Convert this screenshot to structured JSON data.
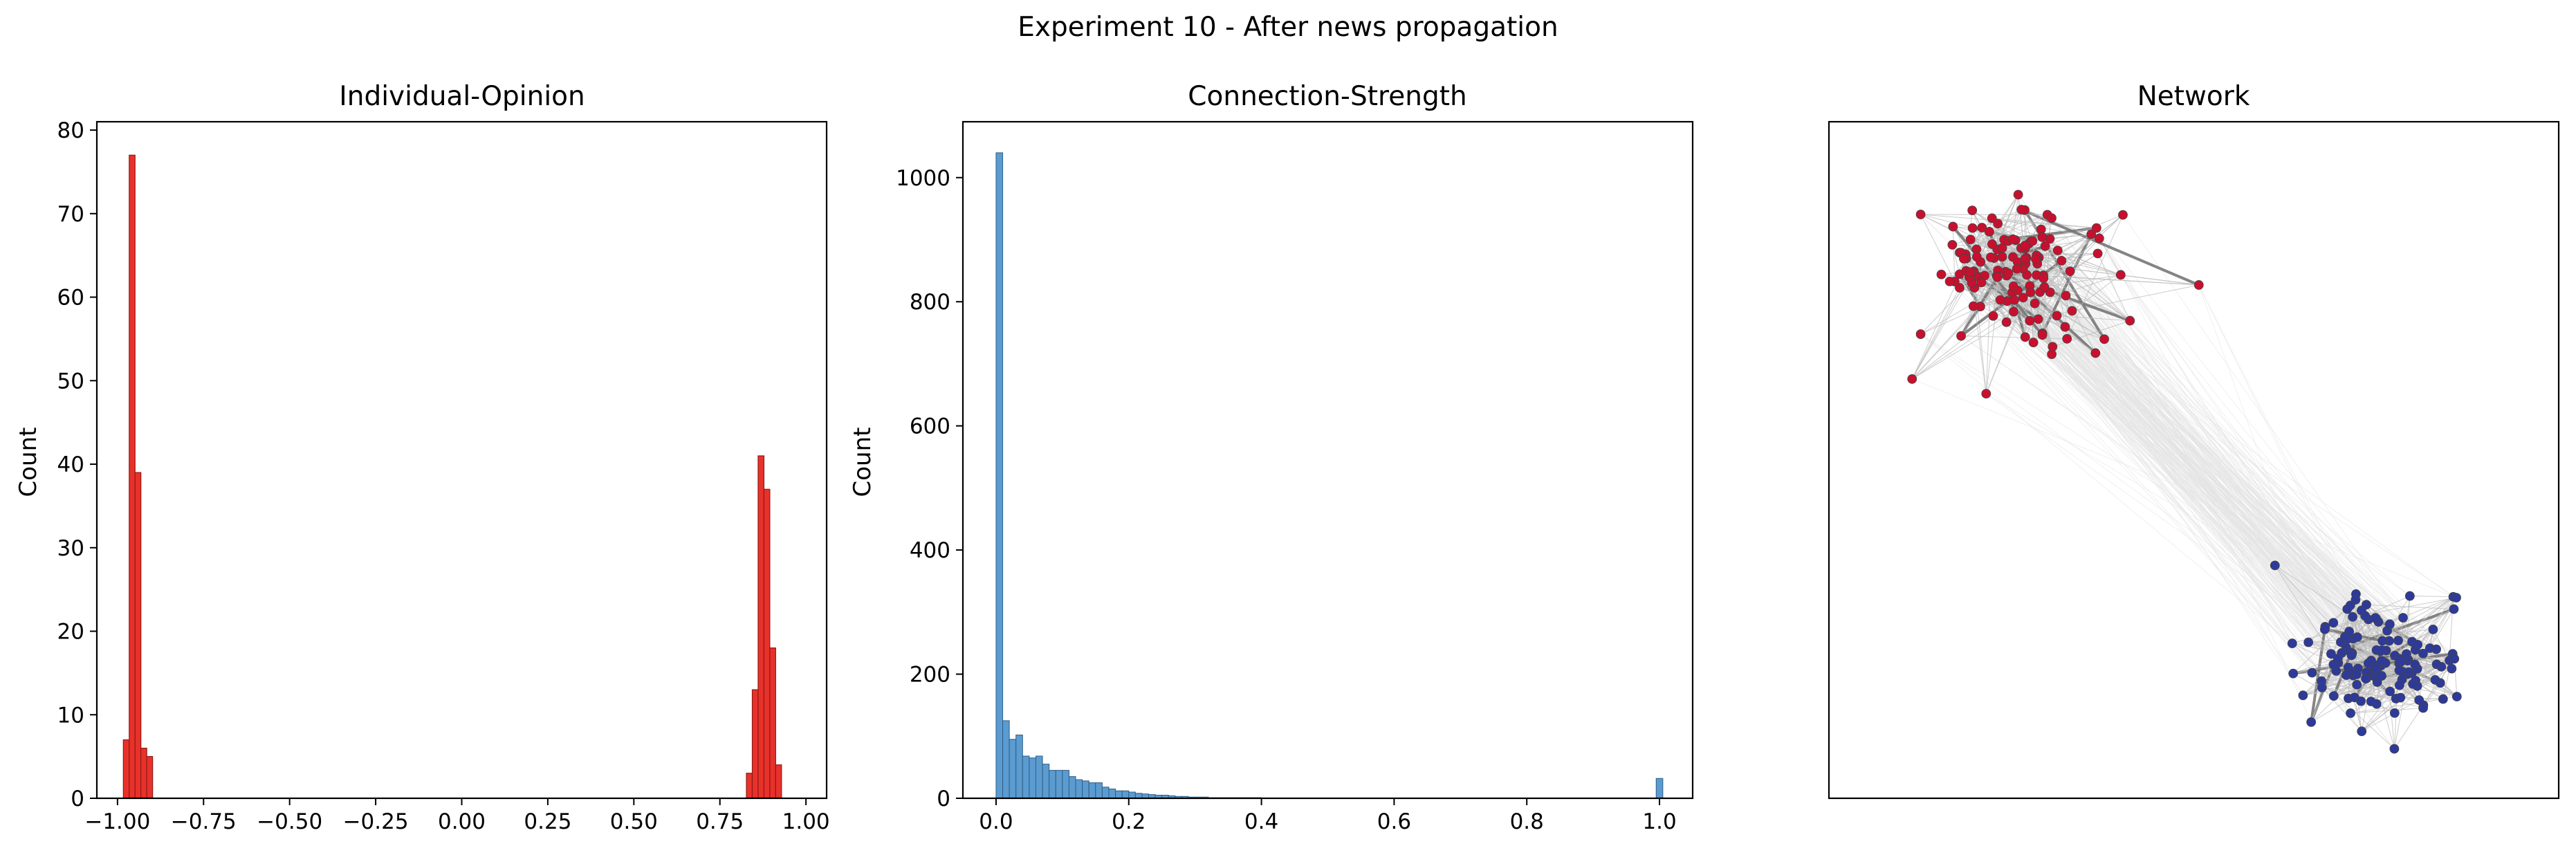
{
  "figure": {
    "suptitle": "Experiment 10 - After news propagation"
  },
  "chart_data": [
    {
      "type": "bar",
      "title": "Individual-Opinion",
      "xlabel": "",
      "ylabel": "Count",
      "xlim": [
        -1.06,
        1.06
      ],
      "ylim": [
        0,
        81
      ],
      "xticks": [
        -1.0,
        -0.75,
        -0.5,
        -0.25,
        0.0,
        0.25,
        0.5,
        0.75,
        1.0
      ],
      "xtick_labels": [
        "−1.00",
        "−0.75",
        "−0.50",
        "−0.25",
        "0.00",
        "0.25",
        "0.50",
        "0.75",
        "1.00"
      ],
      "yticks": [
        0,
        10,
        20,
        30,
        40,
        50,
        60,
        70,
        80
      ],
      "ytick_labels": [
        "0",
        "10",
        "20",
        "30",
        "40",
        "50",
        "60",
        "70",
        "80"
      ],
      "grid": false,
      "color": "#e8312a",
      "edge_color": "#8e1b16",
      "bins": [
        {
          "x0": -0.983,
          "x1": -0.966,
          "count": 7
        },
        {
          "x0": -0.966,
          "x1": -0.949,
          "count": 77
        },
        {
          "x0": -0.949,
          "x1": -0.932,
          "count": 39
        },
        {
          "x0": -0.932,
          "x1": -0.915,
          "count": 6
        },
        {
          "x0": -0.915,
          "x1": -0.898,
          "count": 5
        },
        {
          "x0": 0.827,
          "x1": 0.844,
          "count": 3
        },
        {
          "x0": 0.844,
          "x1": 0.861,
          "count": 13
        },
        {
          "x0": 0.861,
          "x1": 0.878,
          "count": 41
        },
        {
          "x0": 0.878,
          "x1": 0.895,
          "count": 37
        },
        {
          "x0": 0.895,
          "x1": 0.912,
          "count": 18
        },
        {
          "x0": 0.912,
          "x1": 0.929,
          "count": 4
        }
      ]
    },
    {
      "type": "bar",
      "title": "Connection-Strength",
      "xlabel": "",
      "ylabel": "Count",
      "xlim": [
        -0.05,
        1.05
      ],
      "ylim": [
        0,
        1090
      ],
      "xticks": [
        0.0,
        0.2,
        0.4,
        0.6,
        0.8,
        1.0
      ],
      "xtick_labels": [
        "0.0",
        "0.2",
        "0.4",
        "0.6",
        "0.8",
        "1.0"
      ],
      "yticks": [
        0,
        200,
        400,
        600,
        800,
        1000
      ],
      "ytick_labels": [
        "0",
        "200",
        "400",
        "600",
        "800",
        "1000"
      ],
      "grid": false,
      "color": "#5b9bd0",
      "edge_color": "#2f5f86",
      "bin_start": 0.0,
      "bin_width": 0.01,
      "counts": [
        1040,
        125,
        95,
        102,
        68,
        65,
        68,
        55,
        45,
        45,
        45,
        35,
        30,
        28,
        25,
        25,
        18,
        15,
        12,
        12,
        10,
        8,
        7,
        6,
        5,
        5,
        4,
        3,
        3,
        2,
        2,
        2,
        1,
        1,
        1,
        1,
        1,
        1,
        1,
        1
      ],
      "extra_bins": [
        {
          "x0": 0.995,
          "x1": 1.005,
          "count": 32
        }
      ]
    },
    {
      "type": "network",
      "title": "Network",
      "axes_ticks": false,
      "clusters": [
        {
          "color": "#c8102e",
          "center": [
            0.25,
            0.22
          ],
          "spread": [
            0.12,
            0.1
          ],
          "nodes": 130
        },
        {
          "color": "#2e3a9a",
          "center": [
            0.76,
            0.8
          ],
          "spread": [
            0.1,
            0.075
          ],
          "nodes": 130
        }
      ],
      "edge_color": "#bdbdbd",
      "cross_edge_color": "#e3e3e3"
    }
  ]
}
